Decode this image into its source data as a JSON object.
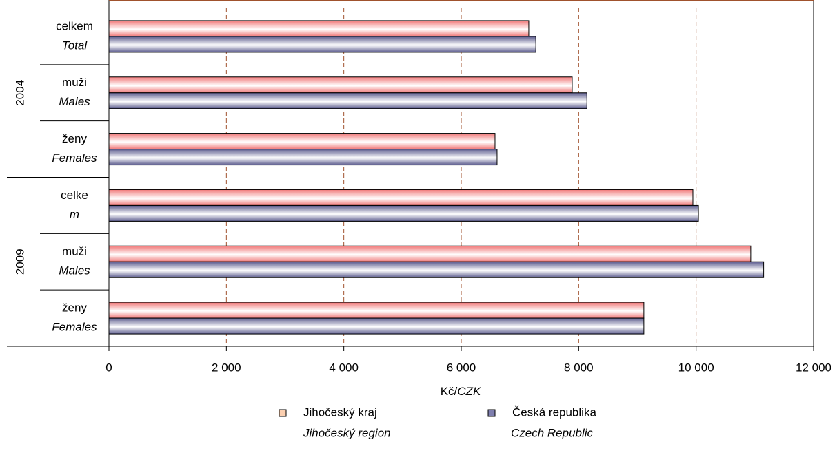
{
  "chart_data": {
    "type": "hbar",
    "groups": [
      "2004",
      "2009"
    ],
    "categories": [
      [
        "celkem",
        "Total"
      ],
      [
        "muži",
        "Males"
      ],
      [
        "ženy",
        "Females"
      ],
      [
        "celke",
        "m"
      ],
      [
        "muži",
        "Males"
      ],
      [
        "ženy",
        "Females"
      ]
    ],
    "series": [
      {
        "name": [
          "Jihočeský kraj",
          "Jihočeský region"
        ],
        "color": "#f07878",
        "legend_color": "#fbcfb0",
        "values": [
          7150,
          7890,
          6575,
          9945,
          10930,
          9110
        ]
      },
      {
        "name": [
          "Česká republika",
          "Czech Republic"
        ],
        "color": "#5a5a8c",
        "legend_color": "#7e7eae",
        "values": [
          7270,
          8140,
          6610,
          10040,
          11150,
          9110
        ]
      }
    ],
    "xlabel": [
      "Kč/",
      "CZK"
    ],
    "xlim": [
      0,
      12000
    ],
    "xticks": [
      0,
      {
        "value": 2000,
        "label": "2 000"
      },
      {
        "value": 4000,
        "label": "4 000"
      },
      {
        "value": 6000,
        "label": "6 000"
      },
      {
        "value": 8000,
        "label": "8 000"
      },
      {
        "value": 10000,
        "label": "10 000"
      },
      {
        "value": 12000,
        "label": "12 000"
      }
    ],
    "grid": true,
    "grid_color": "#a0522d"
  }
}
